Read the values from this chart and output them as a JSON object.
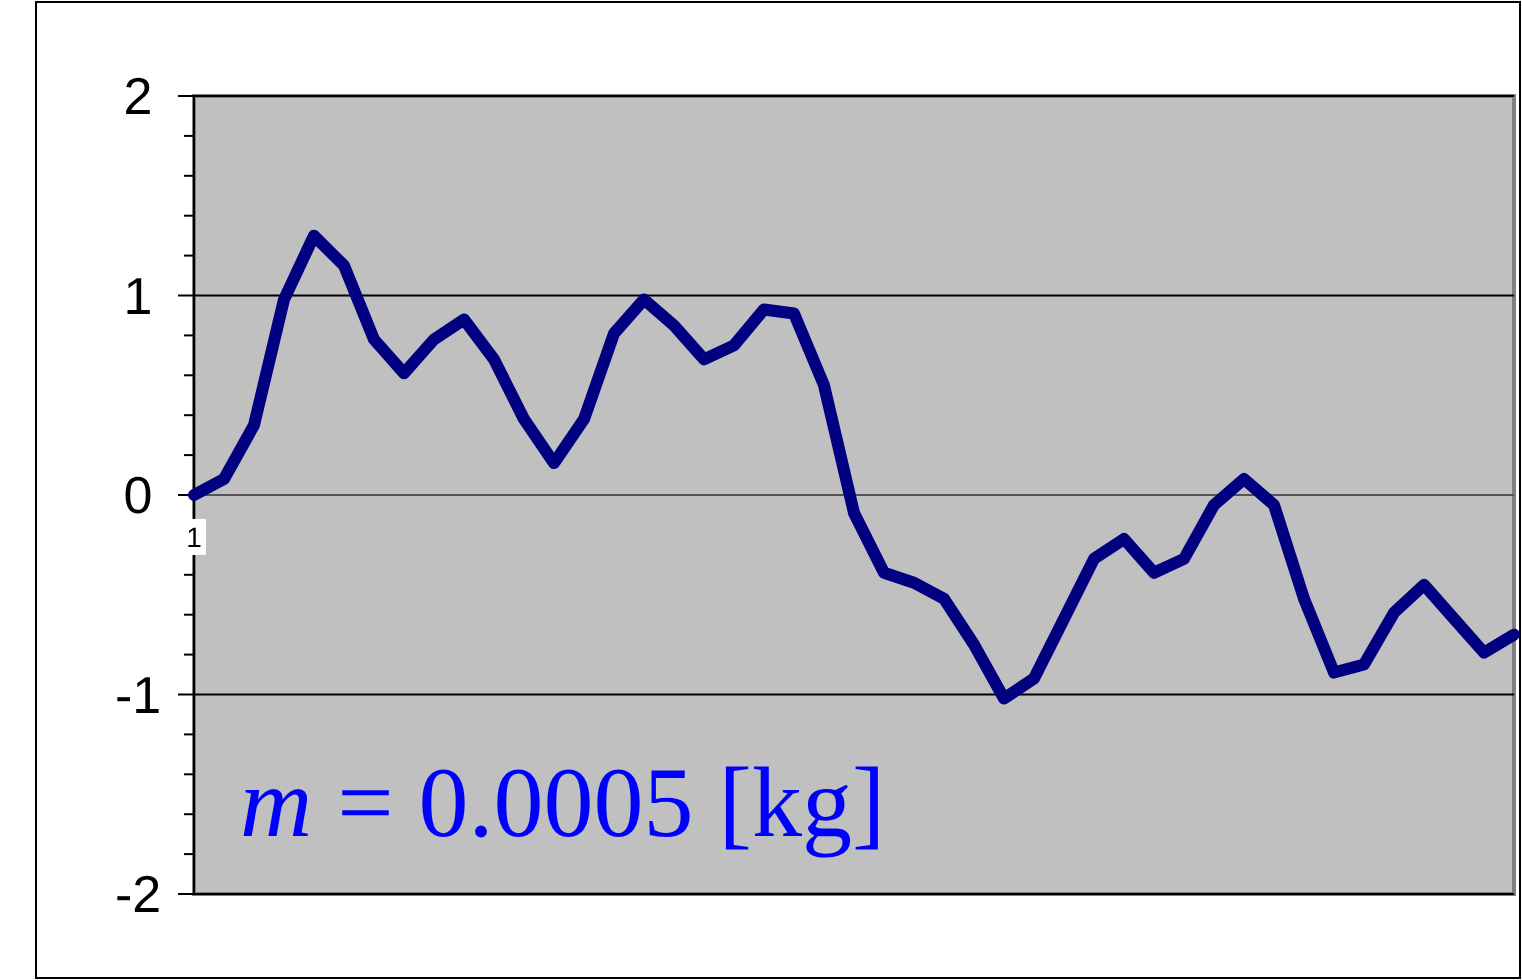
{
  "chart_data": {
    "type": "line",
    "categories": [
      "1",
      null,
      null,
      null,
      null,
      null,
      null,
      null,
      null,
      null,
      null,
      null,
      null,
      null,
      null,
      null,
      null,
      null,
      null,
      null,
      null,
      null,
      null,
      null,
      null,
      null,
      null,
      null,
      null,
      null,
      null,
      null,
      null,
      null,
      null,
      null,
      null,
      null,
      null,
      null,
      null,
      null,
      null,
      null,
      null
    ],
    "series": [
      {
        "color": "#000080",
        "values": [
          0,
          0.08,
          0.35,
          0.98,
          1.3,
          1.15,
          0.78,
          0.61,
          0.78,
          0.88,
          0.68,
          0.38,
          0.16,
          0.38,
          0.81,
          0.98,
          0.85,
          0.68,
          0.75,
          0.93,
          0.91,
          0.55,
          -0.09,
          -0.39,
          -0.44,
          -0.52,
          -0.75,
          -1.02,
          -0.92,
          -0.62,
          -0.32,
          -0.22,
          -0.39,
          -0.32,
          -0.05,
          0.08,
          -0.05,
          -0.52,
          -0.89,
          -0.85,
          -0.59,
          -0.45,
          -0.62,
          -0.79,
          -0.7
        ]
      }
    ],
    "ylim": [
      -2,
      2
    ],
    "yticks": [
      -2,
      {
        "value": -1.8,
        "label": null
      },
      {
        "value": -1.6,
        "label": null
      },
      {
        "value": -1.4,
        "label": null
      },
      {
        "value": -1.2,
        "label": null
      },
      -1,
      {
        "value": -0.8,
        "label": null
      },
      {
        "value": -0.6,
        "label": null
      },
      {
        "value": -0.4,
        "label": null
      },
      {
        "value": -0.2,
        "label": null
      },
      0,
      {
        "value": 0.2,
        "label": null
      },
      {
        "value": 0.4,
        "label": null
      },
      {
        "value": 0.6,
        "label": null
      },
      {
        "value": 0.8,
        "label": null
      },
      1,
      {
        "value": 1.2,
        "label": null
      },
      {
        "value": 1.4,
        "label": null
      },
      {
        "value": 1.6,
        "label": null
      },
      {
        "value": 1.8,
        "label": null
      },
      2
    ],
    "grid": "y",
    "marker": "none",
    "line_style": "solid",
    "annotations": [
      "m = 0.0005 [kg]"
    ]
  }
}
